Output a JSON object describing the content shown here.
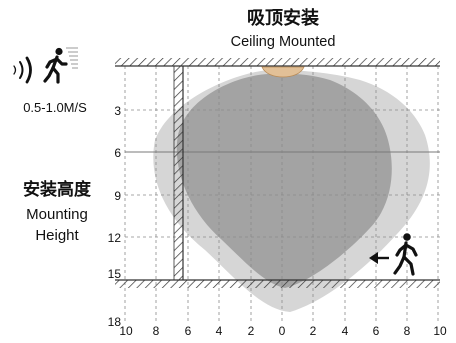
{
  "title_cn": "吸顶安装",
  "title_en": "Ceiling Mounted",
  "speed_label": "0.5-1.0M/S",
  "mounting_height_cn": "安装高度",
  "mounting_height_en_1": "Mounting",
  "mounting_height_en_2": "Height",
  "y_ticks": [
    "3",
    "6",
    "9",
    "12",
    "15",
    "18"
  ],
  "x_ticks": [
    "10",
    "8",
    "6",
    "4",
    "2",
    "0",
    "2",
    "4",
    "6",
    "8",
    "10"
  ],
  "colors": {
    "outer_zone": "#d9d9d9",
    "inner_zone": "#9e9e9e",
    "sensor": "#e8c9a0",
    "line": "#333333",
    "grid": "#9a9a9a"
  },
  "icons": [
    "walking-person-icon",
    "motion-waves-icon",
    "arrow-left-icon"
  ]
}
